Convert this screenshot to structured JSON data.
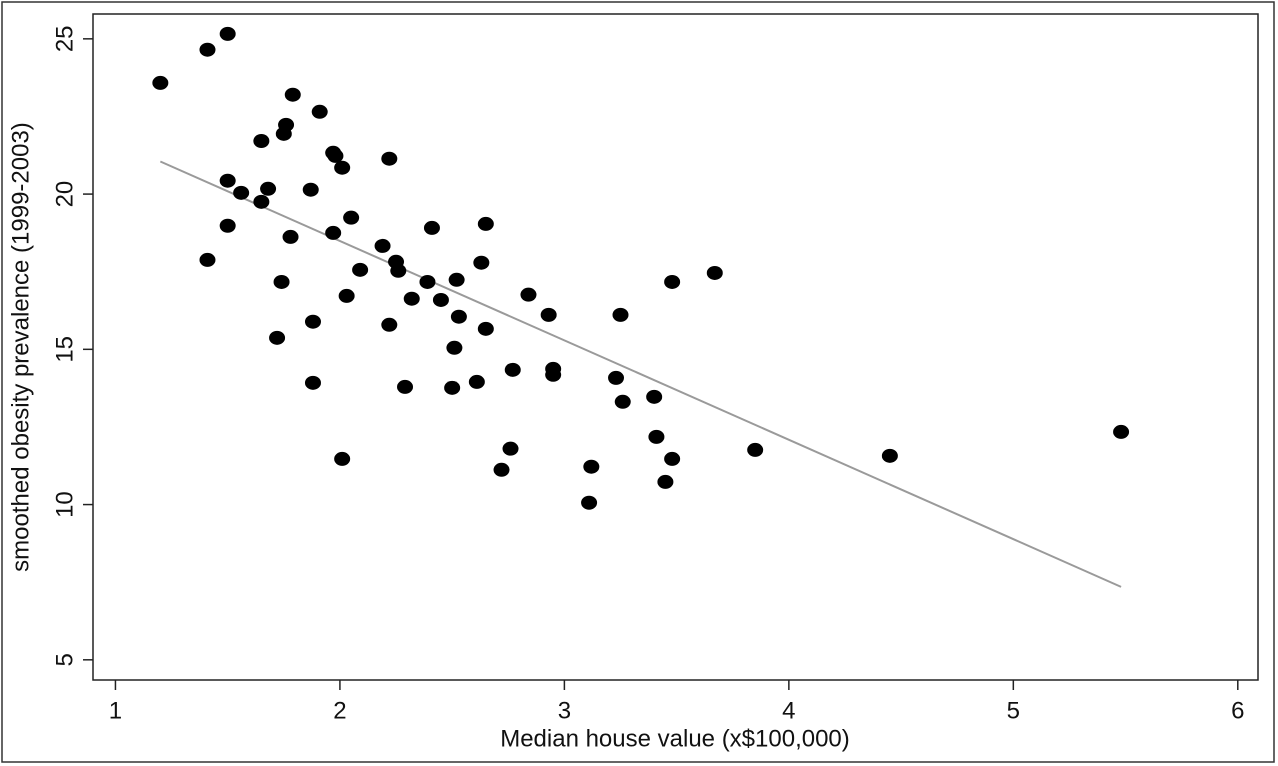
{
  "chart_data": {
    "type": "scatter",
    "x_label": "Median house value (x$100,000)",
    "y_label": "smoothed obesity prevalence (1999-2003)",
    "color": "#000000",
    "x": [
      1.2,
      1.41,
      1.5,
      1.79,
      1.76,
      1.75,
      1.91,
      1.65,
      1.97,
      1.98,
      2.22,
      2.01,
      1.5,
      1.68,
      1.87,
      1.56,
      1.65,
      1.5,
      2.05,
      2.65,
      2.41,
      1.97,
      1.78,
      2.19,
      1.41,
      2.25,
      2.63,
      2.09,
      2.26,
      3.67,
      2.52,
      2.39,
      3.48,
      1.74,
      2.84,
      2.03,
      2.32,
      2.45,
      2.93,
      3.25,
      2.53,
      1.88,
      2.22,
      2.65,
      1.72,
      2.51,
      2.95,
      2.77,
      2.95,
      3.23,
      2.61,
      1.88,
      2.29,
      2.5,
      3.4,
      3.26,
      3.41,
      5.48,
      2.76,
      3.85,
      4.45,
      2.01,
      3.48,
      3.12,
      2.72,
      3.45,
      3.11
    ],
    "values": [
      23.58,
      24.65,
      25.16,
      23.2,
      22.23,
      21.94,
      22.65,
      21.71,
      21.33,
      21.23,
      21.14,
      20.85,
      20.43,
      20.17,
      20.14,
      20.04,
      19.75,
      18.98,
      19.24,
      19.04,
      18.91,
      18.75,
      18.62,
      18.33,
      17.88,
      17.82,
      17.79,
      17.56,
      17.53,
      17.46,
      17.24,
      17.17,
      17.17,
      17.17,
      16.76,
      16.72,
      16.63,
      16.59,
      16.11,
      16.11,
      16.05,
      15.89,
      15.79,
      15.66,
      15.37,
      15.05,
      14.37,
      14.34,
      14.18,
      14.08,
      13.95,
      13.92,
      13.79,
      13.76,
      13.47,
      13.31,
      12.18,
      12.34,
      11.8,
      11.76,
      11.57,
      11.47,
      11.47,
      11.22,
      11.12,
      10.73,
      10.06
    ],
    "fit_line": {
      "x": [
        1.2,
        5.48
      ],
      "values": [
        21.05,
        7.35
      ],
      "color": "#9a9a9a"
    },
    "xlim": [
      0.9,
      6.09
    ],
    "ylim": [
      4.35,
      25.8
    ],
    "xticks": [
      1,
      2,
      3,
      4,
      5,
      6
    ],
    "yticks": [
      5,
      10,
      15,
      20,
      25
    ],
    "grid": false
  }
}
